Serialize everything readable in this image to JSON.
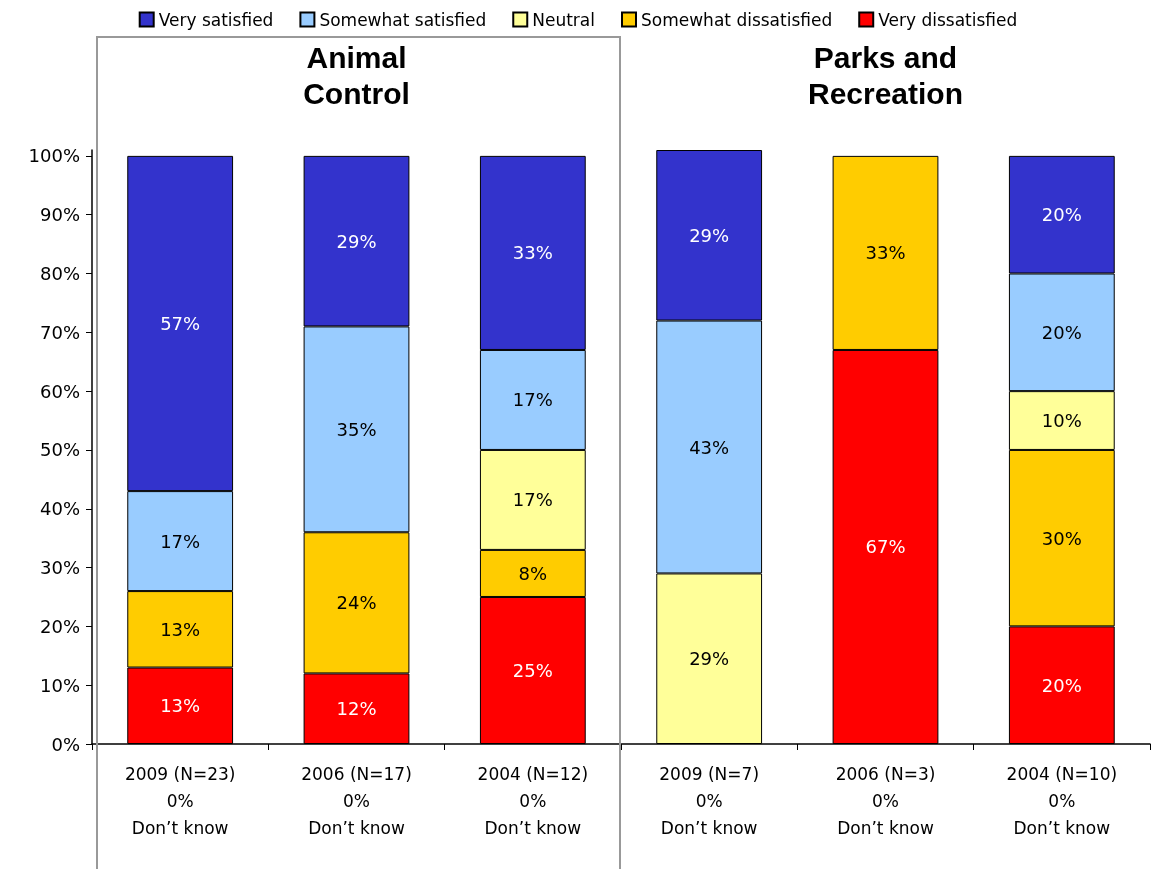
{
  "chart_data": {
    "type": "bar",
    "stacked": true,
    "annotations": [
      "Animal Control",
      "Parks and Recreation"
    ],
    "categories": [
      "2009 (N=23)\n0%\nDon’t know",
      "2006 (N=17)\n0%\nDon’t know",
      "2004 (N=12)\n0%\nDon’t know",
      "2009 (N=7)\n0%\nDon’t know",
      "2006 (N=3)\n0%\nDon’t know",
      "2004 (N=10)\n0%\nDon’t know"
    ],
    "series": [
      {
        "name": "Very dissatisfied",
        "color": "#ff0000",
        "values": [
          13,
          12,
          25,
          null,
          67,
          20
        ],
        "value_labels": [
          "13%",
          "12%",
          "25%",
          null,
          "67%",
          "20%"
        ]
      },
      {
        "name": "Somewhat dissatisfied",
        "color": "#ffcc00",
        "values": [
          13,
          24,
          8,
          null,
          33,
          30
        ],
        "value_labels": [
          "13%",
          "24%",
          "8%",
          null,
          "33%",
          "30%"
        ]
      },
      {
        "name": "Neutral",
        "color": "#ffff99",
        "values": [
          null,
          null,
          17,
          29,
          null,
          10
        ],
        "value_labels": [
          null,
          null,
          "17%",
          "29%",
          null,
          "10%"
        ]
      },
      {
        "name": "Somewhat satisfied",
        "color": "#99ccff",
        "values": [
          17,
          35,
          17,
          43,
          null,
          20
        ],
        "value_labels": [
          "17%",
          "35%",
          "17%",
          "43%",
          null,
          "20%"
        ]
      },
      {
        "name": "Very satisfied",
        "color": "#3333cc",
        "values": [
          57,
          29,
          33,
          29,
          null,
          20
        ],
        "value_labels": [
          "57%",
          "29%",
          "33%",
          "29%",
          null,
          "20%"
        ]
      }
    ],
    "ylim": [
      0,
      101
    ],
    "yticks": [
      {
        "value": 0,
        "label": "0%"
      },
      {
        "value": 10,
        "label": "10%"
      },
      {
        "value": 20,
        "label": "20%"
      },
      {
        "value": 30,
        "label": "30%"
      },
      {
        "value": 40,
        "label": "40%"
      },
      {
        "value": 50,
        "label": "50%"
      },
      {
        "value": 60,
        "label": "60%"
      },
      {
        "value": 70,
        "label": "70%"
      },
      {
        "value": 80,
        "label": "80%"
      },
      {
        "value": 90,
        "label": "90%"
      },
      {
        "value": 100,
        "label": "100%"
      }
    ],
    "legend": "top"
  }
}
